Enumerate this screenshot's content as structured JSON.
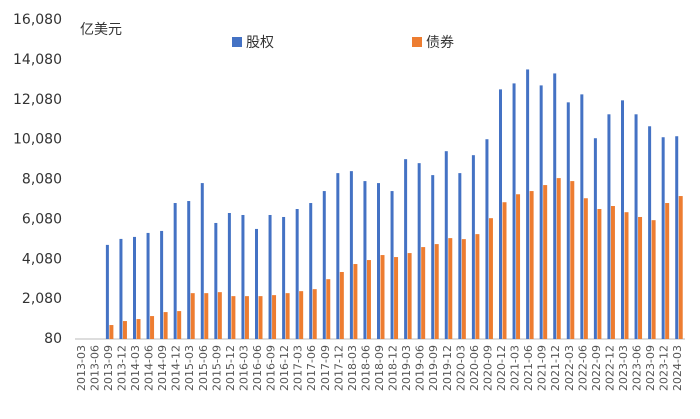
{
  "chart_data": {
    "type": "bar",
    "y_unit_label": "亿美元",
    "categories": [
      "2013-03",
      "2013-06",
      "2013-09",
      "2013-12",
      "2014-03",
      "2014-06",
      "2014-09",
      "2014-12",
      "2015-03",
      "2015-06",
      "2015-09",
      "2015-12",
      "2016-03",
      "2016-06",
      "2016-09",
      "2016-12",
      "2017-03",
      "2017-06",
      "2017-09",
      "2017-12",
      "2018-03",
      "2018-06",
      "2018-09",
      "2018-12",
      "2019-03",
      "2019-06",
      "2019-09",
      "2019-12",
      "2020-03",
      "2020-06",
      "2020-09",
      "2020-12",
      "2021-03",
      "2021-06",
      "2021-09",
      "2021-12",
      "2022-03",
      "2022-06",
      "2022-09",
      "2022-12",
      "2023-03",
      "2023-06",
      "2023-09",
      "2023-12",
      "2024-03"
    ],
    "series": [
      {
        "name": "股权",
        "color": "#4472c4",
        "values": [
          null,
          null,
          4800,
          5100,
          5200,
          5400,
          5500,
          6900,
          7000,
          7900,
          5900,
          6400,
          6300,
          5600,
          6300,
          6200,
          6600,
          6900,
          7500,
          8400,
          8500,
          8000,
          7900,
          7500,
          9100,
          8900,
          8300,
          9500,
          8400,
          9300,
          10100,
          12600,
          12900,
          13600,
          12800,
          13400,
          11950,
          12350,
          10150,
          11350,
          12050,
          11350,
          10750,
          10200,
          10250
        ]
      },
      {
        "name": "债券",
        "color": "#ed7d31",
        "values": [
          null,
          null,
          780,
          980,
          1080,
          1230,
          1430,
          1480,
          2380,
          2380,
          2430,
          2230,
          2230,
          2230,
          2280,
          2380,
          2480,
          2580,
          3080,
          3440,
          3840,
          4040,
          4290,
          4190,
          4390,
          4690,
          4840,
          5140,
          5090,
          5340,
          6140,
          6940,
          7340,
          7500,
          7800,
          8150,
          8000,
          7140,
          6600,
          6750,
          6440,
          6200,
          6040,
          6900,
          7250
        ]
      }
    ],
    "ylim": [
      80,
      16080
    ],
    "yticks": [
      {
        "value": 80,
        "label": "80"
      },
      {
        "value": 2080,
        "label": "2,080"
      },
      {
        "value": 4080,
        "label": "4,080"
      },
      {
        "value": 6080,
        "label": "6,080"
      },
      {
        "value": 8080,
        "label": "8,080"
      },
      {
        "value": 10080,
        "label": "10,080"
      },
      {
        "value": 12080,
        "label": "12,080"
      },
      {
        "value": 14080,
        "label": "14,080"
      },
      {
        "value": 16080,
        "label": "16,080"
      }
    ],
    "grid": false
  }
}
